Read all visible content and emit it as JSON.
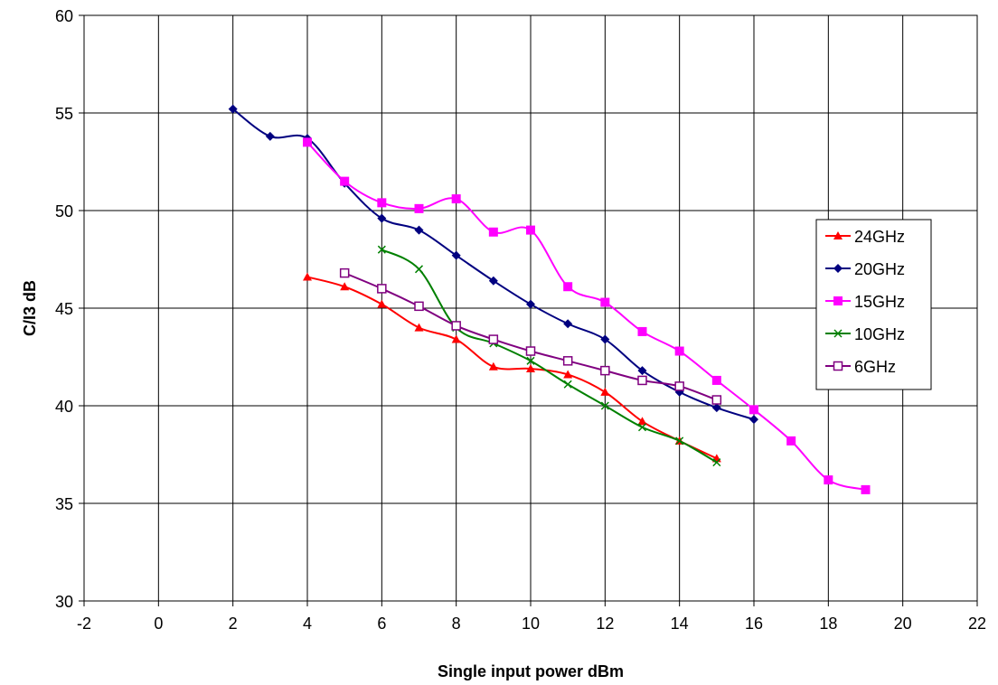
{
  "chart_data": {
    "type": "line",
    "xlabel": "Single input power dBm",
    "ylabel": "C/I3 dB",
    "xlim": [
      -2,
      22
    ],
    "ylim": [
      30,
      60
    ],
    "x_ticks": [
      -2,
      0,
      2,
      4,
      6,
      8,
      10,
      12,
      14,
      16,
      18,
      20,
      22
    ],
    "y_ticks": [
      30,
      35,
      40,
      45,
      50,
      55,
      60
    ],
    "grid": true,
    "legend_position": "right",
    "series": [
      {
        "name": "24GHz",
        "color": "#ff0000",
        "marker": "triangle",
        "points": [
          [
            4,
            46.6
          ],
          [
            5,
            46.1
          ],
          [
            6,
            45.2
          ],
          [
            7,
            44.0
          ],
          [
            8,
            43.4
          ],
          [
            9,
            42.0
          ],
          [
            10,
            41.9
          ],
          [
            11,
            41.6
          ],
          [
            12,
            40.7
          ],
          [
            13,
            39.2
          ],
          [
            14,
            38.2
          ],
          [
            15,
            37.3
          ]
        ]
      },
      {
        "name": "20GHz",
        "color": "#000080",
        "marker": "diamond",
        "points": [
          [
            2,
            55.2
          ],
          [
            3,
            53.8
          ],
          [
            4,
            53.7
          ],
          [
            5,
            51.4
          ],
          [
            6,
            49.6
          ],
          [
            7,
            49.0
          ],
          [
            8,
            47.7
          ],
          [
            9,
            46.4
          ],
          [
            10,
            45.2
          ],
          [
            11,
            44.2
          ],
          [
            12,
            43.4
          ],
          [
            13,
            41.8
          ],
          [
            14,
            40.7
          ],
          [
            15,
            39.9
          ],
          [
            16,
            39.3
          ]
        ]
      },
      {
        "name": "15GHz",
        "color": "#ff00ff",
        "marker": "square",
        "points": [
          [
            4,
            53.5
          ],
          [
            5,
            51.5
          ],
          [
            6,
            50.4
          ],
          [
            7,
            50.1
          ],
          [
            8,
            50.6
          ],
          [
            9,
            48.9
          ],
          [
            10,
            49.0
          ],
          [
            11,
            46.1
          ],
          [
            12,
            45.3
          ],
          [
            13,
            43.8
          ],
          [
            14,
            42.8
          ],
          [
            15,
            41.3
          ],
          [
            16,
            39.8
          ],
          [
            17,
            38.2
          ],
          [
            18,
            36.2
          ],
          [
            19,
            35.7
          ]
        ]
      },
      {
        "name": "10GHz",
        "color": "#008000",
        "marker": "x",
        "points": [
          [
            6,
            48.0
          ],
          [
            7,
            47.0
          ],
          [
            8,
            44.0
          ],
          [
            9,
            43.2
          ],
          [
            10,
            42.3
          ],
          [
            11,
            41.1
          ],
          [
            12,
            40.0
          ],
          [
            13,
            38.9
          ],
          [
            14,
            38.2
          ],
          [
            15,
            37.1
          ]
        ]
      },
      {
        "name": "6GHz",
        "color": "#800080",
        "marker": "open-square",
        "points": [
          [
            5,
            46.8
          ],
          [
            6,
            46.0
          ],
          [
            7,
            45.1
          ],
          [
            8,
            44.1
          ],
          [
            9,
            43.4
          ],
          [
            10,
            42.8
          ],
          [
            11,
            42.3
          ],
          [
            12,
            41.8
          ],
          [
            13,
            41.3
          ],
          [
            14,
            41.0
          ],
          [
            15,
            40.3
          ]
        ]
      }
    ]
  }
}
